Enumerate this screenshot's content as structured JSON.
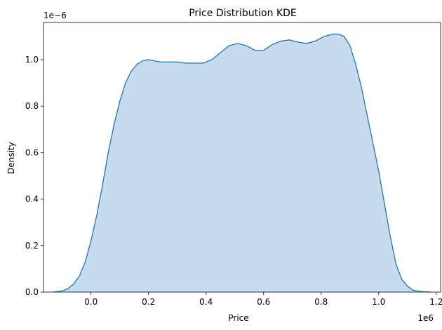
{
  "chart_data": {
    "type": "area",
    "title": "Price Distribution KDE",
    "xlabel": "Price",
    "ylabel": "Density",
    "x_offset_label": "1e6",
    "y_offset_label": "1e−6",
    "xlim": [
      -0.165,
      1.215
    ],
    "ylim": [
      0.0,
      1.16
    ],
    "x_ticks": [
      {
        "value": 0.0,
        "label": "0.0"
      },
      {
        "value": 0.2,
        "label": "0.2"
      },
      {
        "value": 0.4,
        "label": "0.4"
      },
      {
        "value": 0.6,
        "label": "0.6"
      },
      {
        "value": 0.8,
        "label": "0.8"
      },
      {
        "value": 1.0,
        "label": "1.0"
      },
      {
        "value": 1.2,
        "label": "1.2"
      }
    ],
    "y_ticks": [
      {
        "value": 0.0,
        "label": "0.0"
      },
      {
        "value": 0.2,
        "label": "0.2"
      },
      {
        "value": 0.4,
        "label": "0.4"
      },
      {
        "value": 0.6,
        "label": "0.6"
      },
      {
        "value": 0.8,
        "label": "0.8"
      },
      {
        "value": 1.0,
        "label": "1.0"
      }
    ],
    "grid": false,
    "legend": "none",
    "colors": {
      "line": "#1f77b4",
      "fill": "#c6dcee"
    },
    "series": [
      {
        "x": [
          -0.13,
          -0.1,
          -0.08,
          -0.06,
          -0.04,
          -0.02,
          0.0,
          0.02,
          0.04,
          0.06,
          0.08,
          0.1,
          0.12,
          0.14,
          0.16,
          0.18,
          0.2,
          0.22,
          0.24,
          0.27,
          0.3,
          0.33,
          0.36,
          0.39,
          0.42,
          0.45,
          0.48,
          0.51,
          0.54,
          0.57,
          0.6,
          0.63,
          0.66,
          0.69,
          0.72,
          0.75,
          0.78,
          0.81,
          0.84,
          0.86,
          0.88,
          0.9,
          0.92,
          0.94,
          0.96,
          0.98,
          1.0,
          1.02,
          1.04,
          1.06,
          1.08,
          1.1,
          1.12,
          1.15,
          1.18
        ],
        "y": [
          0.0,
          0.005,
          0.015,
          0.035,
          0.07,
          0.13,
          0.22,
          0.33,
          0.46,
          0.6,
          0.72,
          0.82,
          0.9,
          0.95,
          0.98,
          0.995,
          1.0,
          0.995,
          0.99,
          0.99,
          0.99,
          0.985,
          0.985,
          0.985,
          1.0,
          1.03,
          1.06,
          1.07,
          1.06,
          1.04,
          1.04,
          1.065,
          1.08,
          1.085,
          1.075,
          1.07,
          1.08,
          1.1,
          1.11,
          1.11,
          1.1,
          1.06,
          0.98,
          0.88,
          0.76,
          0.64,
          0.52,
          0.38,
          0.24,
          0.12,
          0.055,
          0.025,
          0.008,
          0.002,
          0.0
        ]
      }
    ]
  }
}
